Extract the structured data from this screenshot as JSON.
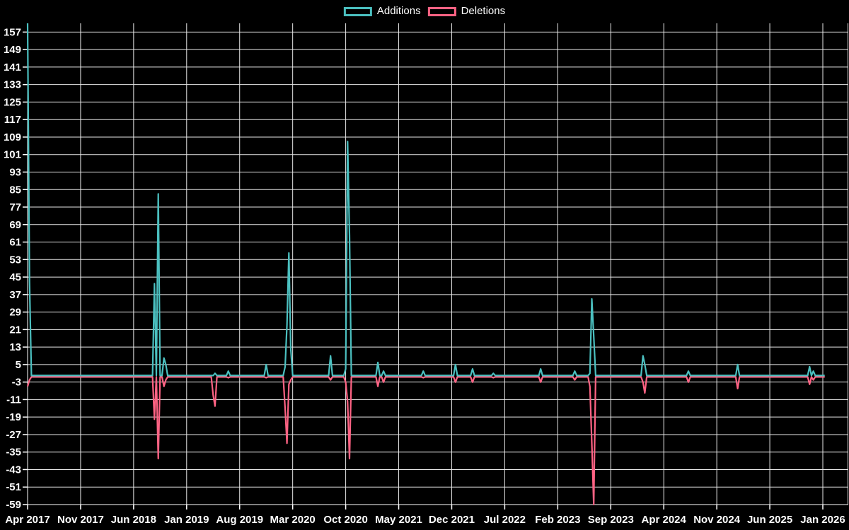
{
  "legend": {
    "items": [
      "Additions",
      "Deletions"
    ]
  },
  "chart_data": {
    "type": "line",
    "title": "",
    "xlabel": "",
    "ylabel": "",
    "legend_position": "top",
    "grid": true,
    "background_color": "#000000",
    "grid_color": "#e8e8e8",
    "axis_color": "#ffffff",
    "text_color": "#ffffff",
    "x_tick_labels": [
      "Apr 2017",
      "Nov 2017",
      "Jun 2018",
      "Jan 2019",
      "Aug 2019",
      "Mar 2020",
      "Oct 2020",
      "May 2021",
      "Dec 2021",
      "Jul 2022",
      "Feb 2023",
      "Sep 2023",
      "Apr 2024",
      "Nov 2024",
      "Jun 2025",
      "Jan 2026"
    ],
    "x_tick_interval_months": 7,
    "y_ticks": [
      157,
      149,
      141,
      133,
      125,
      117,
      109,
      101,
      93,
      85,
      77,
      69,
      61,
      53,
      45,
      37,
      29,
      21,
      13,
      5,
      -3,
      -11,
      -19,
      -27,
      -35,
      -43,
      -51,
      -59
    ],
    "ylim": [
      -59,
      161
    ],
    "xlim_months": [
      0,
      105.25
    ],
    "step_months": 0.25,
    "series": [
      {
        "name": "Additions",
        "color": "#4bc0c0"
      },
      {
        "name": "Deletions",
        "color": "#ff6384"
      }
    ],
    "points": [
      {
        "m": 0.0,
        "additions": 161,
        "deletions": -5
      },
      {
        "m": 0.25,
        "additions": 43,
        "deletions": -2
      },
      {
        "m": 16.75,
        "additions": 42,
        "deletions": -20
      },
      {
        "m": 17.25,
        "additions": 83,
        "deletions": -38
      },
      {
        "m": 18.0,
        "additions": 8,
        "deletions": -5
      },
      {
        "m": 18.25,
        "additions": 5,
        "deletions": -2
      },
      {
        "m": 24.5,
        "additions": 0,
        "deletions": -9
      },
      {
        "m": 24.75,
        "additions": 1,
        "deletions": -14
      },
      {
        "m": 26.5,
        "additions": 2,
        "deletions": -1
      },
      {
        "m": 31.5,
        "additions": 5,
        "deletions": -1
      },
      {
        "m": 34.0,
        "additions": 4,
        "deletions": -15
      },
      {
        "m": 34.25,
        "additions": 23,
        "deletions": -31
      },
      {
        "m": 34.5,
        "additions": 56,
        "deletions": -4
      },
      {
        "m": 34.75,
        "additions": 12,
        "deletions": -2
      },
      {
        "m": 40.0,
        "additions": 9,
        "deletions": -2
      },
      {
        "m": 42.0,
        "additions": 3,
        "deletions": -3
      },
      {
        "m": 42.25,
        "additions": 107,
        "deletions": -12
      },
      {
        "m": 42.5,
        "additions": 64,
        "deletions": -38
      },
      {
        "m": 46.25,
        "additions": 6,
        "deletions": -5
      },
      {
        "m": 47.0,
        "additions": 2,
        "deletions": -3
      },
      {
        "m": 52.25,
        "additions": 2,
        "deletions": -1
      },
      {
        "m": 56.5,
        "additions": 5,
        "deletions": -3
      },
      {
        "m": 58.75,
        "additions": 3,
        "deletions": -3
      },
      {
        "m": 61.5,
        "additions": 1,
        "deletions": -1
      },
      {
        "m": 67.75,
        "additions": 3,
        "deletions": -3
      },
      {
        "m": 72.25,
        "additions": 2,
        "deletions": -2
      },
      {
        "m": 74.25,
        "additions": 1,
        "deletions": -5
      },
      {
        "m": 74.5,
        "additions": 35,
        "deletions": -31
      },
      {
        "m": 74.75,
        "additions": 18,
        "deletions": -59
      },
      {
        "m": 81.25,
        "additions": 9,
        "deletions": -3
      },
      {
        "m": 81.5,
        "additions": 5,
        "deletions": -8
      },
      {
        "m": 87.25,
        "additions": 2,
        "deletions": -3
      },
      {
        "m": 93.75,
        "additions": 5,
        "deletions": -6
      },
      {
        "m": 103.25,
        "additions": 4,
        "deletions": -4
      },
      {
        "m": 103.75,
        "additions": 2,
        "deletions": -2
      }
    ]
  }
}
